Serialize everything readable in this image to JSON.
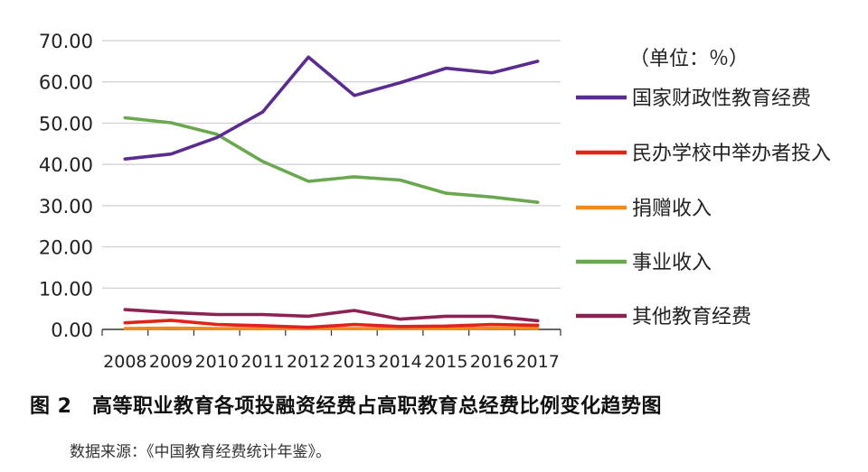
{
  "caption": {
    "figure_title": "图 2　高等职业教育各项投融资经费占高职教育总经费比例变化趋势图",
    "source": "数据来源：《中国教育经费统计年鉴》。"
  },
  "chart_data": {
    "type": "line",
    "unit_label": "（单位：％）",
    "x": [
      "2008",
      "2009",
      "2010",
      "2011",
      "2012",
      "2013",
      "2014",
      "2015",
      "2016",
      "2017"
    ],
    "y_ticks": [
      "70.00",
      "60.00",
      "50.00",
      "40.00",
      "30.00",
      "20.00",
      "10.00",
      "0.00"
    ],
    "ylim": [
      0,
      70
    ],
    "grid": true,
    "legend_position": "right",
    "series": [
      {
        "name": "国家财政性教育经费",
        "color": "#5b2c8f",
        "values": [
          41.3,
          42.5,
          46.5,
          52.7,
          66.0,
          56.7,
          59.8,
          63.3,
          62.2,
          65.0
        ]
      },
      {
        "name": "民办学校中举办者投入",
        "color": "#e2231a",
        "values": [
          1.6,
          2.2,
          1.2,
          0.9,
          0.5,
          1.2,
          0.7,
          0.8,
          1.2,
          1.0
        ]
      },
      {
        "name": "捐赠收入",
        "color": "#f08a1c",
        "values": [
          0.2,
          0.3,
          0.2,
          0.2,
          0.2,
          0.2,
          0.2,
          0.2,
          0.3,
          0.3
        ]
      },
      {
        "name": "事业收入",
        "color": "#6aa84f",
        "values": [
          51.3,
          50.1,
          47.3,
          40.7,
          35.9,
          37.0,
          36.2,
          33.0,
          32.1,
          30.8
        ]
      },
      {
        "name": "其他教育经费",
        "color": "#8b2252",
        "values": [
          4.8,
          4.1,
          3.6,
          3.6,
          3.2,
          4.6,
          2.5,
          3.2,
          3.2,
          2.1
        ]
      }
    ]
  }
}
